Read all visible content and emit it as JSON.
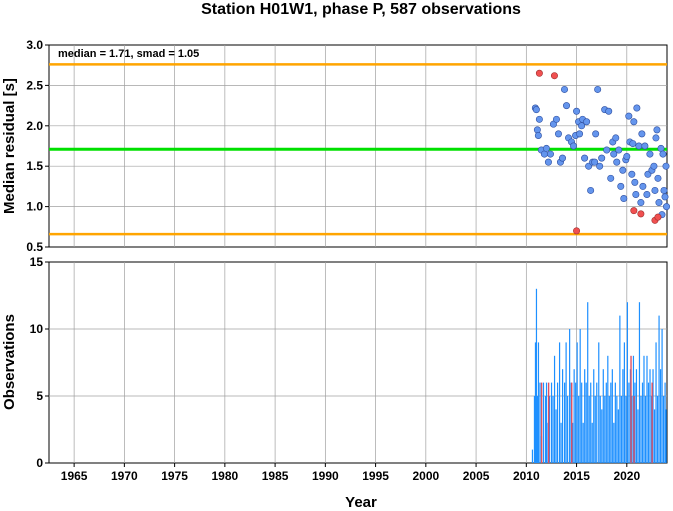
{
  "title": "Station H01W1, phase P, 587 observations",
  "annotation": "median = 1.71, smad = 1.05",
  "colors": {
    "median_line": "#00e000",
    "bound_line": "#ffa500",
    "point_normal": "#6495ed",
    "point_outlier": "#f05050",
    "bar_blue": "#1e90ff",
    "bar_red": "#e05060",
    "grid": "#a0a0a0"
  },
  "chart_data": [
    {
      "type": "scatter",
      "ylabel": "Median residual [s]",
      "xlim": [
        1962.5,
        2024.0
      ],
      "ylim": [
        0.5,
        3.0
      ],
      "yticks": [
        "0.5",
        "1.0",
        "1.5",
        "2.0",
        "2.5",
        "3.0"
      ],
      "grid": true,
      "median": 1.71,
      "upper_bound": 2.76,
      "lower_bound": 0.66,
      "points": [
        [
          2010.9,
          2.22
        ],
        [
          2011.0,
          2.2
        ],
        [
          2011.1,
          1.95
        ],
        [
          2011.2,
          1.88
        ],
        [
          2011.3,
          2.08
        ],
        [
          2011.5,
          1.7
        ],
        [
          2011.8,
          1.65
        ],
        [
          2012.0,
          1.72
        ],
        [
          2012.2,
          1.55
        ],
        [
          2012.4,
          1.65
        ],
        [
          2012.7,
          2.02
        ],
        [
          2013.0,
          2.08
        ],
        [
          2013.2,
          1.9
        ],
        [
          2013.4,
          1.55
        ],
        [
          2013.6,
          1.6
        ],
        [
          2013.8,
          2.45
        ],
        [
          2014.0,
          2.25
        ],
        [
          2014.2,
          1.85
        ],
        [
          2014.5,
          1.8
        ],
        [
          2014.7,
          1.75
        ],
        [
          2014.9,
          1.88
        ],
        [
          2015.0,
          2.18
        ],
        [
          2015.2,
          2.05
        ],
        [
          2015.3,
          1.9
        ],
        [
          2015.5,
          2.0
        ],
        [
          2015.6,
          2.08
        ],
        [
          2015.8,
          1.6
        ],
        [
          2016.0,
          2.05
        ],
        [
          2016.2,
          1.5
        ],
        [
          2016.4,
          1.2
        ],
        [
          2016.6,
          1.55
        ],
        [
          2016.9,
          1.9
        ],
        [
          2017.1,
          2.45
        ],
        [
          2017.3,
          1.5
        ],
        [
          2017.5,
          1.6
        ],
        [
          2017.8,
          2.2
        ],
        [
          2018.0,
          1.7
        ],
        [
          2018.2,
          2.18
        ],
        [
          2018.4,
          1.35
        ],
        [
          2018.6,
          1.8
        ],
        [
          2018.9,
          1.85
        ],
        [
          2019.0,
          1.55
        ],
        [
          2019.2,
          1.7
        ],
        [
          2019.4,
          1.25
        ],
        [
          2019.6,
          1.45
        ],
        [
          2019.7,
          1.1
        ],
        [
          2019.9,
          1.58
        ],
        [
          2020.0,
          1.62
        ],
        [
          2020.2,
          2.12
        ],
        [
          2020.3,
          1.8
        ],
        [
          2020.5,
          1.4
        ],
        [
          2020.7,
          2.05
        ],
        [
          2020.8,
          1.3
        ],
        [
          2020.9,
          1.15
        ],
        [
          2021.0,
          2.22
        ],
        [
          2021.2,
          1.75
        ],
        [
          2021.4,
          1.05
        ],
        [
          2021.5,
          1.9
        ],
        [
          2021.6,
          1.25
        ],
        [
          2021.8,
          1.75
        ],
        [
          2022.0,
          1.15
        ],
        [
          2022.1,
          1.4
        ],
        [
          2022.3,
          1.65
        ],
        [
          2022.5,
          1.45
        ],
        [
          2022.7,
          1.5
        ],
        [
          2022.8,
          1.2
        ],
        [
          2022.9,
          1.85
        ],
        [
          2023.0,
          1.95
        ],
        [
          2023.1,
          1.35
        ],
        [
          2023.2,
          1.05
        ],
        [
          2023.4,
          1.72
        ],
        [
          2023.5,
          0.9
        ],
        [
          2023.6,
          1.65
        ],
        [
          2023.7,
          1.2
        ],
        [
          2023.8,
          1.12
        ],
        [
          2023.9,
          1.5
        ],
        [
          2023.95,
          1.0
        ],
        [
          2016.8,
          1.55
        ],
        [
          2018.7,
          1.65
        ],
        [
          2020.6,
          1.78
        ]
      ],
      "outliers": [
        [
          2011.3,
          2.65
        ],
        [
          2012.8,
          2.62
        ],
        [
          2015.0,
          0.7
        ],
        [
          2020.7,
          0.95
        ],
        [
          2021.4,
          0.91
        ],
        [
          2022.8,
          0.83
        ],
        [
          2023.1,
          0.87
        ]
      ]
    },
    {
      "type": "bar",
      "xlabel": "Year",
      "ylabel": "Observations",
      "xlim": [
        1962.5,
        2024.0
      ],
      "ylim": [
        0,
        15
      ],
      "yticks": [
        "0",
        "5",
        "10",
        "15"
      ],
      "xticks": [
        "1965",
        "1970",
        "1975",
        "1980",
        "1985",
        "1990",
        "1995",
        "2000",
        "2005",
        "2010",
        "2015",
        "2020"
      ],
      "grid": true,
      "bars_blue": [
        [
          2010.6,
          1
        ],
        [
          2010.8,
          5
        ],
        [
          2010.9,
          9
        ],
        [
          2011.0,
          13
        ],
        [
          2011.1,
          5
        ],
        [
          2011.2,
          9
        ],
        [
          2011.35,
          6
        ],
        [
          2011.5,
          2
        ],
        [
          2011.7,
          6
        ],
        [
          2011.9,
          5
        ],
        [
          2012.0,
          6
        ],
        [
          2012.15,
          3
        ],
        [
          2012.3,
          5
        ],
        [
          2012.5,
          6
        ],
        [
          2012.65,
          5
        ],
        [
          2012.8,
          8
        ],
        [
          2012.95,
          4
        ],
        [
          2013.1,
          6
        ],
        [
          2013.3,
          9
        ],
        [
          2013.45,
          3
        ],
        [
          2013.6,
          7
        ],
        [
          2013.8,
          6
        ],
        [
          2013.95,
          9
        ],
        [
          2014.1,
          5
        ],
        [
          2014.3,
          10
        ],
        [
          2014.45,
          6
        ],
        [
          2014.6,
          3
        ],
        [
          2014.75,
          7
        ],
        [
          2014.9,
          6
        ],
        [
          2015.05,
          9
        ],
        [
          2015.2,
          5
        ],
        [
          2015.35,
          10
        ],
        [
          2015.5,
          6
        ],
        [
          2015.65,
          3
        ],
        [
          2015.8,
          7
        ],
        [
          2015.95,
          6
        ],
        [
          2016.1,
          12
        ],
        [
          2016.25,
          5
        ],
        [
          2016.4,
          6
        ],
        [
          2016.55,
          3
        ],
        [
          2016.7,
          7
        ],
        [
          2016.85,
          5
        ],
        [
          2017.0,
          6
        ],
        [
          2017.2,
          9
        ],
        [
          2017.35,
          5
        ],
        [
          2017.5,
          4
        ],
        [
          2017.65,
          7
        ],
        [
          2017.8,
          5
        ],
        [
          2017.95,
          6
        ],
        [
          2018.1,
          8
        ],
        [
          2018.25,
          5
        ],
        [
          2018.4,
          6
        ],
        [
          2018.55,
          7
        ],
        [
          2018.7,
          3
        ],
        [
          2018.85,
          6
        ],
        [
          2019.0,
          5
        ],
        [
          2019.15,
          4
        ],
        [
          2019.3,
          11
        ],
        [
          2019.45,
          5
        ],
        [
          2019.6,
          7
        ],
        [
          2019.75,
          9
        ],
        [
          2019.9,
          5
        ],
        [
          2020.05,
          12
        ],
        [
          2020.2,
          6
        ],
        [
          2020.35,
          7
        ],
        [
          2020.5,
          5
        ],
        [
          2020.65,
          8
        ],
        [
          2020.8,
          6
        ],
        [
          2020.95,
          7
        ],
        [
          2021.1,
          4
        ],
        [
          2021.25,
          12
        ],
        [
          2021.4,
          5
        ],
        [
          2021.55,
          6
        ],
        [
          2021.7,
          8
        ],
        [
          2021.85,
          5
        ],
        [
          2022.0,
          8
        ],
        [
          2022.15,
          6
        ],
        [
          2022.3,
          7
        ],
        [
          2022.45,
          5
        ],
        [
          2022.6,
          7
        ],
        [
          2022.75,
          4
        ],
        [
          2022.9,
          9
        ],
        [
          2023.05,
          5
        ],
        [
          2023.2,
          11
        ],
        [
          2023.35,
          7
        ],
        [
          2023.5,
          10
        ],
        [
          2023.65,
          5
        ],
        [
          2023.8,
          6
        ],
        [
          2023.9,
          4
        ]
      ],
      "bars_red": [
        [
          2011.5,
          6
        ],
        [
          2012.2,
          6
        ],
        [
          2014.5,
          6
        ],
        [
          2020.4,
          8
        ],
        [
          2020.7,
          5
        ],
        [
          2022.5,
          6
        ]
      ]
    }
  ]
}
